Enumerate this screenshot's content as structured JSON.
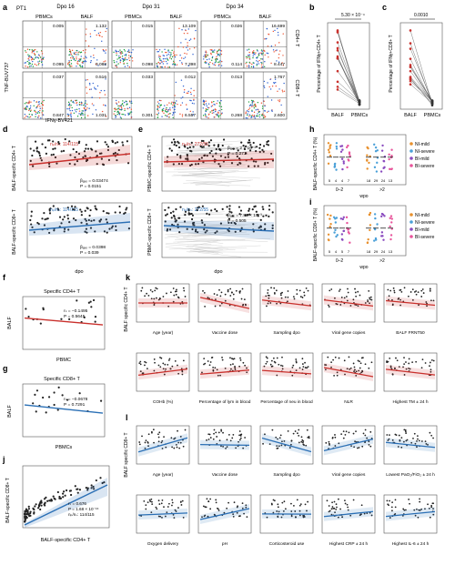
{
  "panels": {
    "a": {
      "letter": "a",
      "patient": "PT1",
      "timepoints": [
        "Dpo 16",
        "Dpo 31",
        "Dpo 34"
      ],
      "samples": [
        "PBMCs",
        "BALF",
        "PBMCs",
        "BALF",
        "PBMCs",
        "BALF"
      ],
      "row_labels": [
        "CD4+ T",
        "CD8+ T"
      ],
      "y_axis": "TNF-BUV737",
      "x_axis": "IFNγ-BV421",
      "cd4_values": [
        [
          "0.005",
          "0.095"
        ],
        [
          "1.132",
          "0.088"
        ],
        [
          "0.015",
          "0.098"
        ],
        [
          "13.109",
          "7.398"
        ],
        [
          "0.026",
          "0.114"
        ],
        [
          "16.699",
          "8.447"
        ]
      ],
      "cd8_values": [
        [
          "0.037",
          "0.847"
        ],
        [
          "0.516",
          "1.031"
        ],
        [
          "0.033",
          "0.301"
        ],
        [
          "0.012",
          "6.557"
        ],
        [
          "0.013",
          "0.268"
        ],
        [
          "1.767",
          "2.600"
        ]
      ]
    },
    "b": {
      "letter": "b",
      "ylabel": "Percentage of IFNγ+CD4+ T",
      "pvalue": "5.30 × 10⁻⁴",
      "categories": [
        "BALF",
        "PBMCs"
      ]
    },
    "c": {
      "letter": "c",
      "ylabel": "Percentage of IFNγ+CD8+ T",
      "pvalue": "0.0010",
      "categories": [
        "BALF",
        "PBMCs"
      ]
    },
    "d": {
      "letter": "d",
      "ylabel_top": "BALF-specific CD4+ T",
      "ylabel_bottom": "BALF-specific CD8+ T",
      "xlabel": "dpo",
      "n_top": "nₚ/nₛ: 114/115",
      "n_bottom": "nₚ/nₛ: 114/115",
      "stats_top": [
        "βₐₓₒ = 0.03474",
        "P = 0.0151"
      ],
      "stats_bottom": [
        "βₐₓₒ = 0.0398",
        "P = 0.039"
      ]
    },
    "e": {
      "letter": "e",
      "ylabel_top": "PBMC-specific CD4+ T",
      "ylabel_bottom": "PBMC-specific CD8+ T",
      "xlabel": "dpo",
      "n_top": "nₚ/nₛ: 272/55",
      "n_bottom": "nₚ/nₛ: 272/55",
      "stats_top": [
        "βₐₓₒ = 2 × 10⁻³",
        "P = 0.271"
      ],
      "stats_bottom": [
        "βₐₓₒ = 7.83 × 10⁻³",
        "P = 0.505"
      ]
    },
    "f": {
      "letter": "f",
      "title": "Specific CD4+ T",
      "xlabel": "PBMC",
      "ylabel": "BALF",
      "stats": [
        "rₛ = −0.1495",
        "P = 0.5645"
      ]
    },
    "g": {
      "letter": "g",
      "title": "Specific CD8+ T",
      "xlabel": "PBMCs",
      "ylabel": "BALF",
      "stats": [
        "rₛ = −0.0678",
        "P = 0.7291"
      ]
    },
    "h": {
      "letter": "h",
      "ylabel": "BALF-specific CD4+ T (%)",
      "xlabel": "wpo",
      "groups": [
        "0–2",
        ">2"
      ],
      "legend": [
        "NI-mild",
        "NI-severe",
        "BI-mild",
        "BI-severe"
      ],
      "counts": [
        "5",
        "4",
        "4",
        "7",
        "18",
        "29",
        "24",
        "13"
      ]
    },
    "i": {
      "letter": "i",
      "ylabel": "BALF-specific CD8+ T (%)",
      "xlabel": "wpo",
      "groups": [
        "0–2",
        ">2"
      ],
      "legend": [
        "NI-mild",
        "NI-severe",
        "BI-mild",
        "BI-severe"
      ],
      "counts": [
        "5",
        "4",
        "5",
        "7",
        "18",
        "29",
        "24",
        "13"
      ]
    },
    "j": {
      "letter": "j",
      "xlabel": "BALF-specific CD4+ T",
      "ylabel": "BALF-specific CD8+ T",
      "stats": [
        "rₛ = 0.676",
        "P = 1.68 × 10⁻¹⁶",
        "nₚ/nₛ: 114/115"
      ]
    },
    "k": {
      "letter": "k",
      "ylabel_row1": "BALF specific CD4+ T",
      "row1_x": [
        "Age (year)",
        "Vaccine dose",
        "Sampling dpo",
        "Viral gene copies",
        "BALF FRNT50"
      ],
      "row2_x": [
        "COHb (%)",
        "Percentage of lym in blood",
        "Percentage of neu in blood",
        "NLR",
        "Highest TM ± 24 h"
      ]
    },
    "l": {
      "letter": "l",
      "ylabel_row1": "BALF specific CD8+ T",
      "row1_x": [
        "Age (year)",
        "Vaccine dose",
        "Sampling dpo",
        "Viral gene copies",
        "Lowest PaO₂/FiO₂ ± 24 h"
      ],
      "row2_x": [
        "Oxygen delivery",
        "pH",
        "Corticosteroid use",
        "Highest CRP ± 24 h",
        "Highest IL-6 ± 24 h"
      ]
    }
  },
  "colors": {
    "red": "#c9302c",
    "blue": "#2a6fb5",
    "pink": "#e8559b",
    "purple": "#8a4bbf",
    "orange": "#e8902d",
    "lightblue": "#4aa0d8"
  }
}
